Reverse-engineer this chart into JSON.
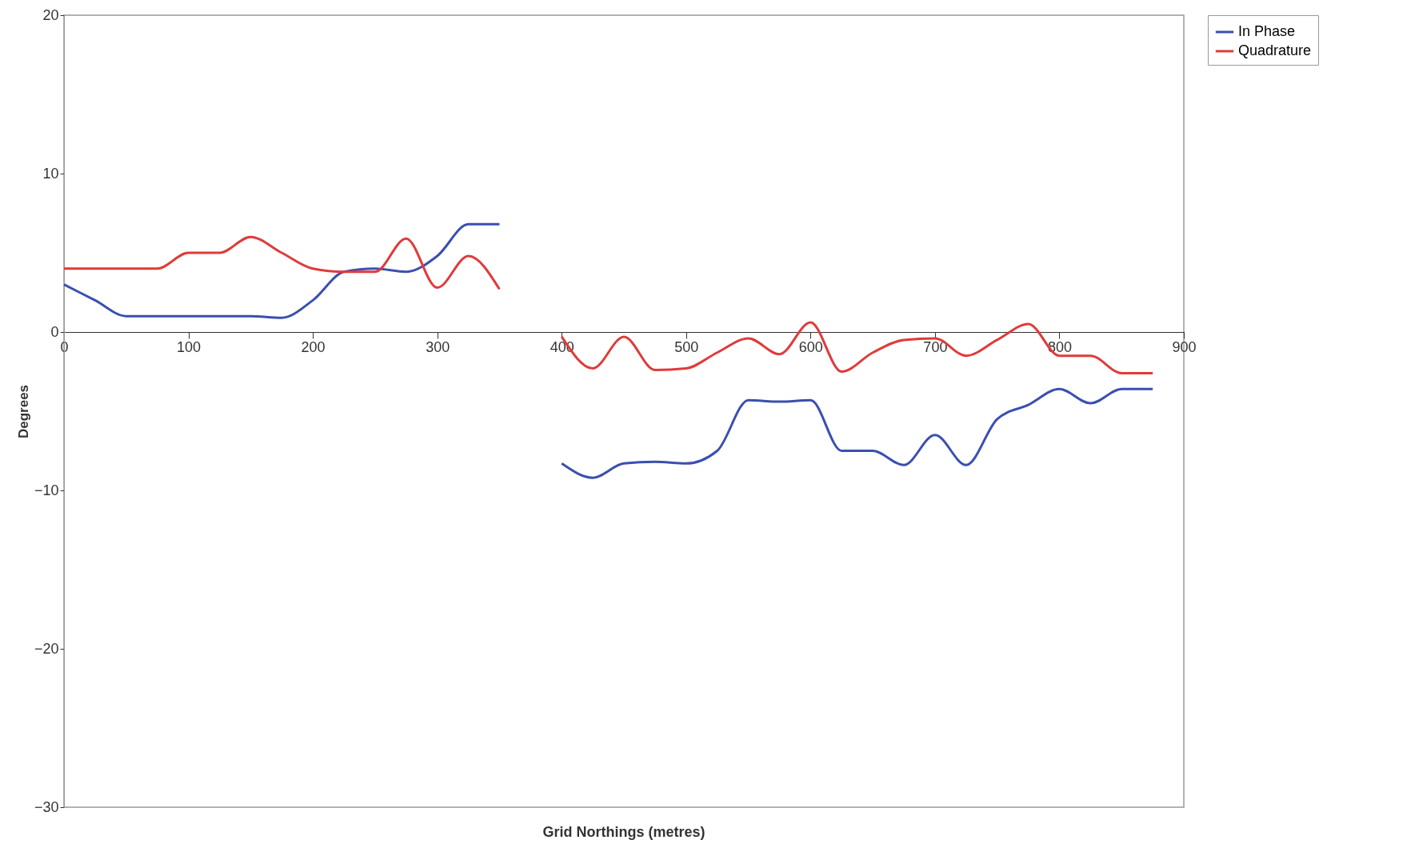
{
  "chart_data": {
    "type": "line",
    "xlabel": "Grid Northings (metres)",
    "ylabel": "Degrees",
    "x": [
      0,
      25,
      50,
      75,
      100,
      125,
      150,
      175,
      200,
      225,
      250,
      275,
      300,
      325,
      350,
      375,
      400,
      425,
      450,
      475,
      500,
      525,
      550,
      575,
      600,
      625,
      650,
      675,
      700,
      725,
      750,
      775,
      800,
      825,
      850,
      875
    ],
    "series": [
      {
        "name": "In Phase",
        "color": "#3a4fb0",
        "values": [
          3,
          2,
          1,
          1,
          1,
          1,
          1,
          0.9,
          2,
          3.8,
          4,
          3.8,
          4.8,
          6.8,
          6.8,
          null,
          -8.3,
          -9.2,
          -8.3,
          -8.2,
          -8.3,
          -7.5,
          -4.3,
          -4.4,
          -4.3,
          -7.5,
          -7.5,
          -8.4,
          -6.5,
          -8.4,
          -5.5,
          -4.6,
          -3.6,
          -4.5,
          -3.6,
          -3.6
        ]
      },
      {
        "name": "Quadrature",
        "color": "#e03a3a",
        "values": [
          4,
          4,
          4,
          4,
          5,
          5,
          6,
          5,
          4,
          3.8,
          3.8,
          5.9,
          2.8,
          4.8,
          2.7,
          null,
          -0.3,
          -2.3,
          -0.3,
          -2.4,
          -2.3,
          -1.3,
          -0.4,
          -1.4,
          0.6,
          -2.5,
          -1.3,
          -0.5,
          -0.4,
          -1.5,
          -0.5,
          0.5,
          -1.5,
          -1.5,
          -2.6,
          -2.6
        ]
      }
    ],
    "xlim": [
      0,
      900
    ],
    "xticks": [
      0,
      100,
      200,
      300,
      400,
      500,
      600,
      700,
      800,
      900
    ],
    "ylim": [
      -30,
      20
    ],
    "yticks": [
      -30,
      -20,
      -10,
      0,
      10,
      20
    ],
    "grid": false,
    "legend": "right"
  }
}
